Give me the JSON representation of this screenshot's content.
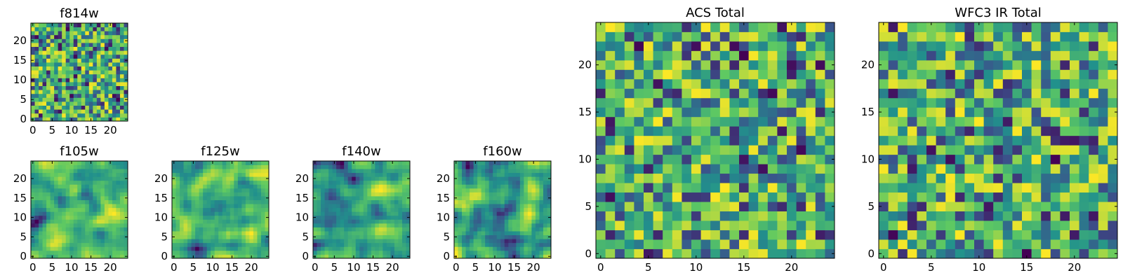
{
  "colors": {
    "background": "#ffffff",
    "axis": "#000000",
    "colormap": [
      "#440154",
      "#3b528b",
      "#21918c",
      "#5ec962",
      "#fde725"
    ]
  },
  "chart_data": [
    {
      "id": "f814w",
      "type": "heatmap",
      "title": "f814w",
      "grid_size": 25,
      "xlim": [
        -0.5,
        24.5
      ],
      "ylim": [
        -0.5,
        24.5
      ],
      "xticks": [
        0,
        5,
        10,
        15,
        20
      ],
      "yticks": [
        0,
        5,
        10,
        15,
        20
      ],
      "xticklabels": [
        "0",
        "5",
        "10",
        "15",
        "20"
      ],
      "yticklabels": [
        "0",
        "5",
        "10",
        "15",
        "20"
      ],
      "seed": 814,
      "smooth": 0,
      "colormap": "viridis"
    },
    {
      "id": "f105w",
      "type": "heatmap",
      "title": "f105w",
      "grid_size": 25,
      "xlim": [
        -0.5,
        24.5
      ],
      "ylim": [
        -0.5,
        24.5
      ],
      "xticks": [
        0,
        5,
        10,
        15,
        20
      ],
      "yticks": [
        0,
        5,
        10,
        15,
        20
      ],
      "xticklabels": [
        "0",
        "5",
        "10",
        "15",
        "20"
      ],
      "yticklabels": [
        "0",
        "5",
        "10",
        "15",
        "20"
      ],
      "seed": 105,
      "smooth": 2,
      "colormap": "viridis"
    },
    {
      "id": "f125w",
      "type": "heatmap",
      "title": "f125w",
      "grid_size": 25,
      "xlim": [
        -0.5,
        24.5
      ],
      "ylim": [
        -0.5,
        24.5
      ],
      "xticks": [
        0,
        5,
        10,
        15,
        20
      ],
      "yticks": [
        0,
        5,
        10,
        15,
        20
      ],
      "xticklabels": [
        "0",
        "5",
        "10",
        "15",
        "20"
      ],
      "yticklabels": [
        "0",
        "5",
        "10",
        "15",
        "20"
      ],
      "seed": 125,
      "smooth": 2,
      "colormap": "viridis"
    },
    {
      "id": "f140w",
      "type": "heatmap",
      "title": "f140w",
      "grid_size": 25,
      "xlim": [
        -0.5,
        24.5
      ],
      "ylim": [
        -0.5,
        24.5
      ],
      "xticks": [
        0,
        5,
        10,
        15,
        20
      ],
      "yticks": [
        0,
        5,
        10,
        15,
        20
      ],
      "xticklabels": [
        "0",
        "5",
        "10",
        "15",
        "20"
      ],
      "yticklabels": [
        "0",
        "5",
        "10",
        "15",
        "20"
      ],
      "seed": 140,
      "smooth": 2,
      "colormap": "viridis"
    },
    {
      "id": "f160w",
      "type": "heatmap",
      "title": "f160w",
      "grid_size": 25,
      "xlim": [
        -0.5,
        24.5
      ],
      "ylim": [
        -0.5,
        24.5
      ],
      "xticks": [
        0,
        5,
        10,
        15,
        20
      ],
      "yticks": [
        0,
        5,
        10,
        15,
        20
      ],
      "xticklabels": [
        "0",
        "5",
        "10",
        "15",
        "20"
      ],
      "yticklabels": [
        "0",
        "5",
        "10",
        "15",
        "20"
      ],
      "seed": 160,
      "smooth": 2,
      "colormap": "viridis"
    },
    {
      "id": "acs-total",
      "type": "heatmap",
      "title": "ACS Total",
      "grid_size": 25,
      "xlim": [
        -0.5,
        24.5
      ],
      "ylim": [
        -0.5,
        24.5
      ],
      "xticks": [
        0,
        5,
        10,
        15,
        20
      ],
      "yticks": [
        0,
        5,
        10,
        15,
        20
      ],
      "xticklabels": [
        "0",
        "5",
        "10",
        "15",
        "20"
      ],
      "yticklabels": [
        "0",
        "5",
        "10",
        "15",
        "20"
      ],
      "seed": 700,
      "smooth": 0,
      "colormap": "viridis"
    },
    {
      "id": "wfc3-ir-total",
      "type": "heatmap",
      "title": "WFC3 IR Total",
      "grid_size": 25,
      "xlim": [
        -0.5,
        24.5
      ],
      "ylim": [
        -0.5,
        24.5
      ],
      "xticks": [
        0,
        5,
        10,
        15,
        20
      ],
      "yticks": [
        0,
        5,
        10,
        15,
        20
      ],
      "xticklabels": [
        "0",
        "5",
        "10",
        "15",
        "20"
      ],
      "yticklabels": [
        "0",
        "5",
        "10",
        "15",
        "20"
      ],
      "seed": 900,
      "smooth": 0,
      "colormap": "viridis"
    }
  ]
}
